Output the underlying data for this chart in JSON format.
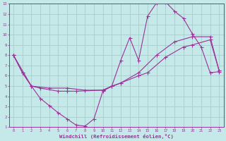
{
  "xlabel": "Windchill (Refroidissement éolien,°C)",
  "xlim": [
    -0.5,
    23.5
  ],
  "ylim": [
    1,
    13
  ],
  "xticks": [
    0,
    1,
    2,
    3,
    4,
    5,
    6,
    7,
    8,
    9,
    10,
    11,
    12,
    13,
    14,
    15,
    16,
    17,
    18,
    19,
    20,
    21,
    22,
    23
  ],
  "yticks": [
    1,
    2,
    3,
    4,
    5,
    6,
    7,
    8,
    9,
    10,
    11,
    12,
    13
  ],
  "bg_color": "#c5e8e8",
  "line_color": "#993399",
  "grid_color": "#a8cccc",
  "line1_x": [
    0,
    1,
    2,
    3,
    4,
    5,
    6,
    7,
    8,
    9,
    10,
    11,
    12,
    13,
    14,
    15,
    16,
    17,
    18,
    19,
    20,
    21,
    22,
    23
  ],
  "line1_y": [
    8.0,
    6.3,
    5.0,
    3.8,
    3.1,
    2.4,
    1.8,
    1.2,
    1.1,
    1.8,
    4.5,
    5.0,
    7.5,
    9.7,
    7.5,
    11.8,
    13.1,
    13.2,
    12.3,
    11.6,
    10.1,
    8.8,
    6.3,
    6.4
  ],
  "line2_x": [
    0,
    1,
    2,
    3,
    5,
    6,
    7,
    10,
    11,
    12,
    14,
    15,
    17,
    19,
    20,
    22,
    23
  ],
  "line2_y": [
    8.0,
    6.3,
    5.0,
    4.8,
    4.5,
    4.5,
    4.5,
    4.6,
    5.0,
    5.3,
    6.0,
    6.3,
    7.8,
    8.8,
    9.0,
    9.5,
    6.5
  ],
  "line3_x": [
    0,
    2,
    4,
    6,
    8,
    10,
    12,
    14,
    16,
    18,
    20,
    22,
    23
  ],
  "line3_y": [
    8.0,
    5.0,
    4.8,
    4.8,
    4.6,
    4.6,
    5.3,
    6.3,
    8.0,
    9.3,
    9.8,
    9.8,
    6.5
  ]
}
